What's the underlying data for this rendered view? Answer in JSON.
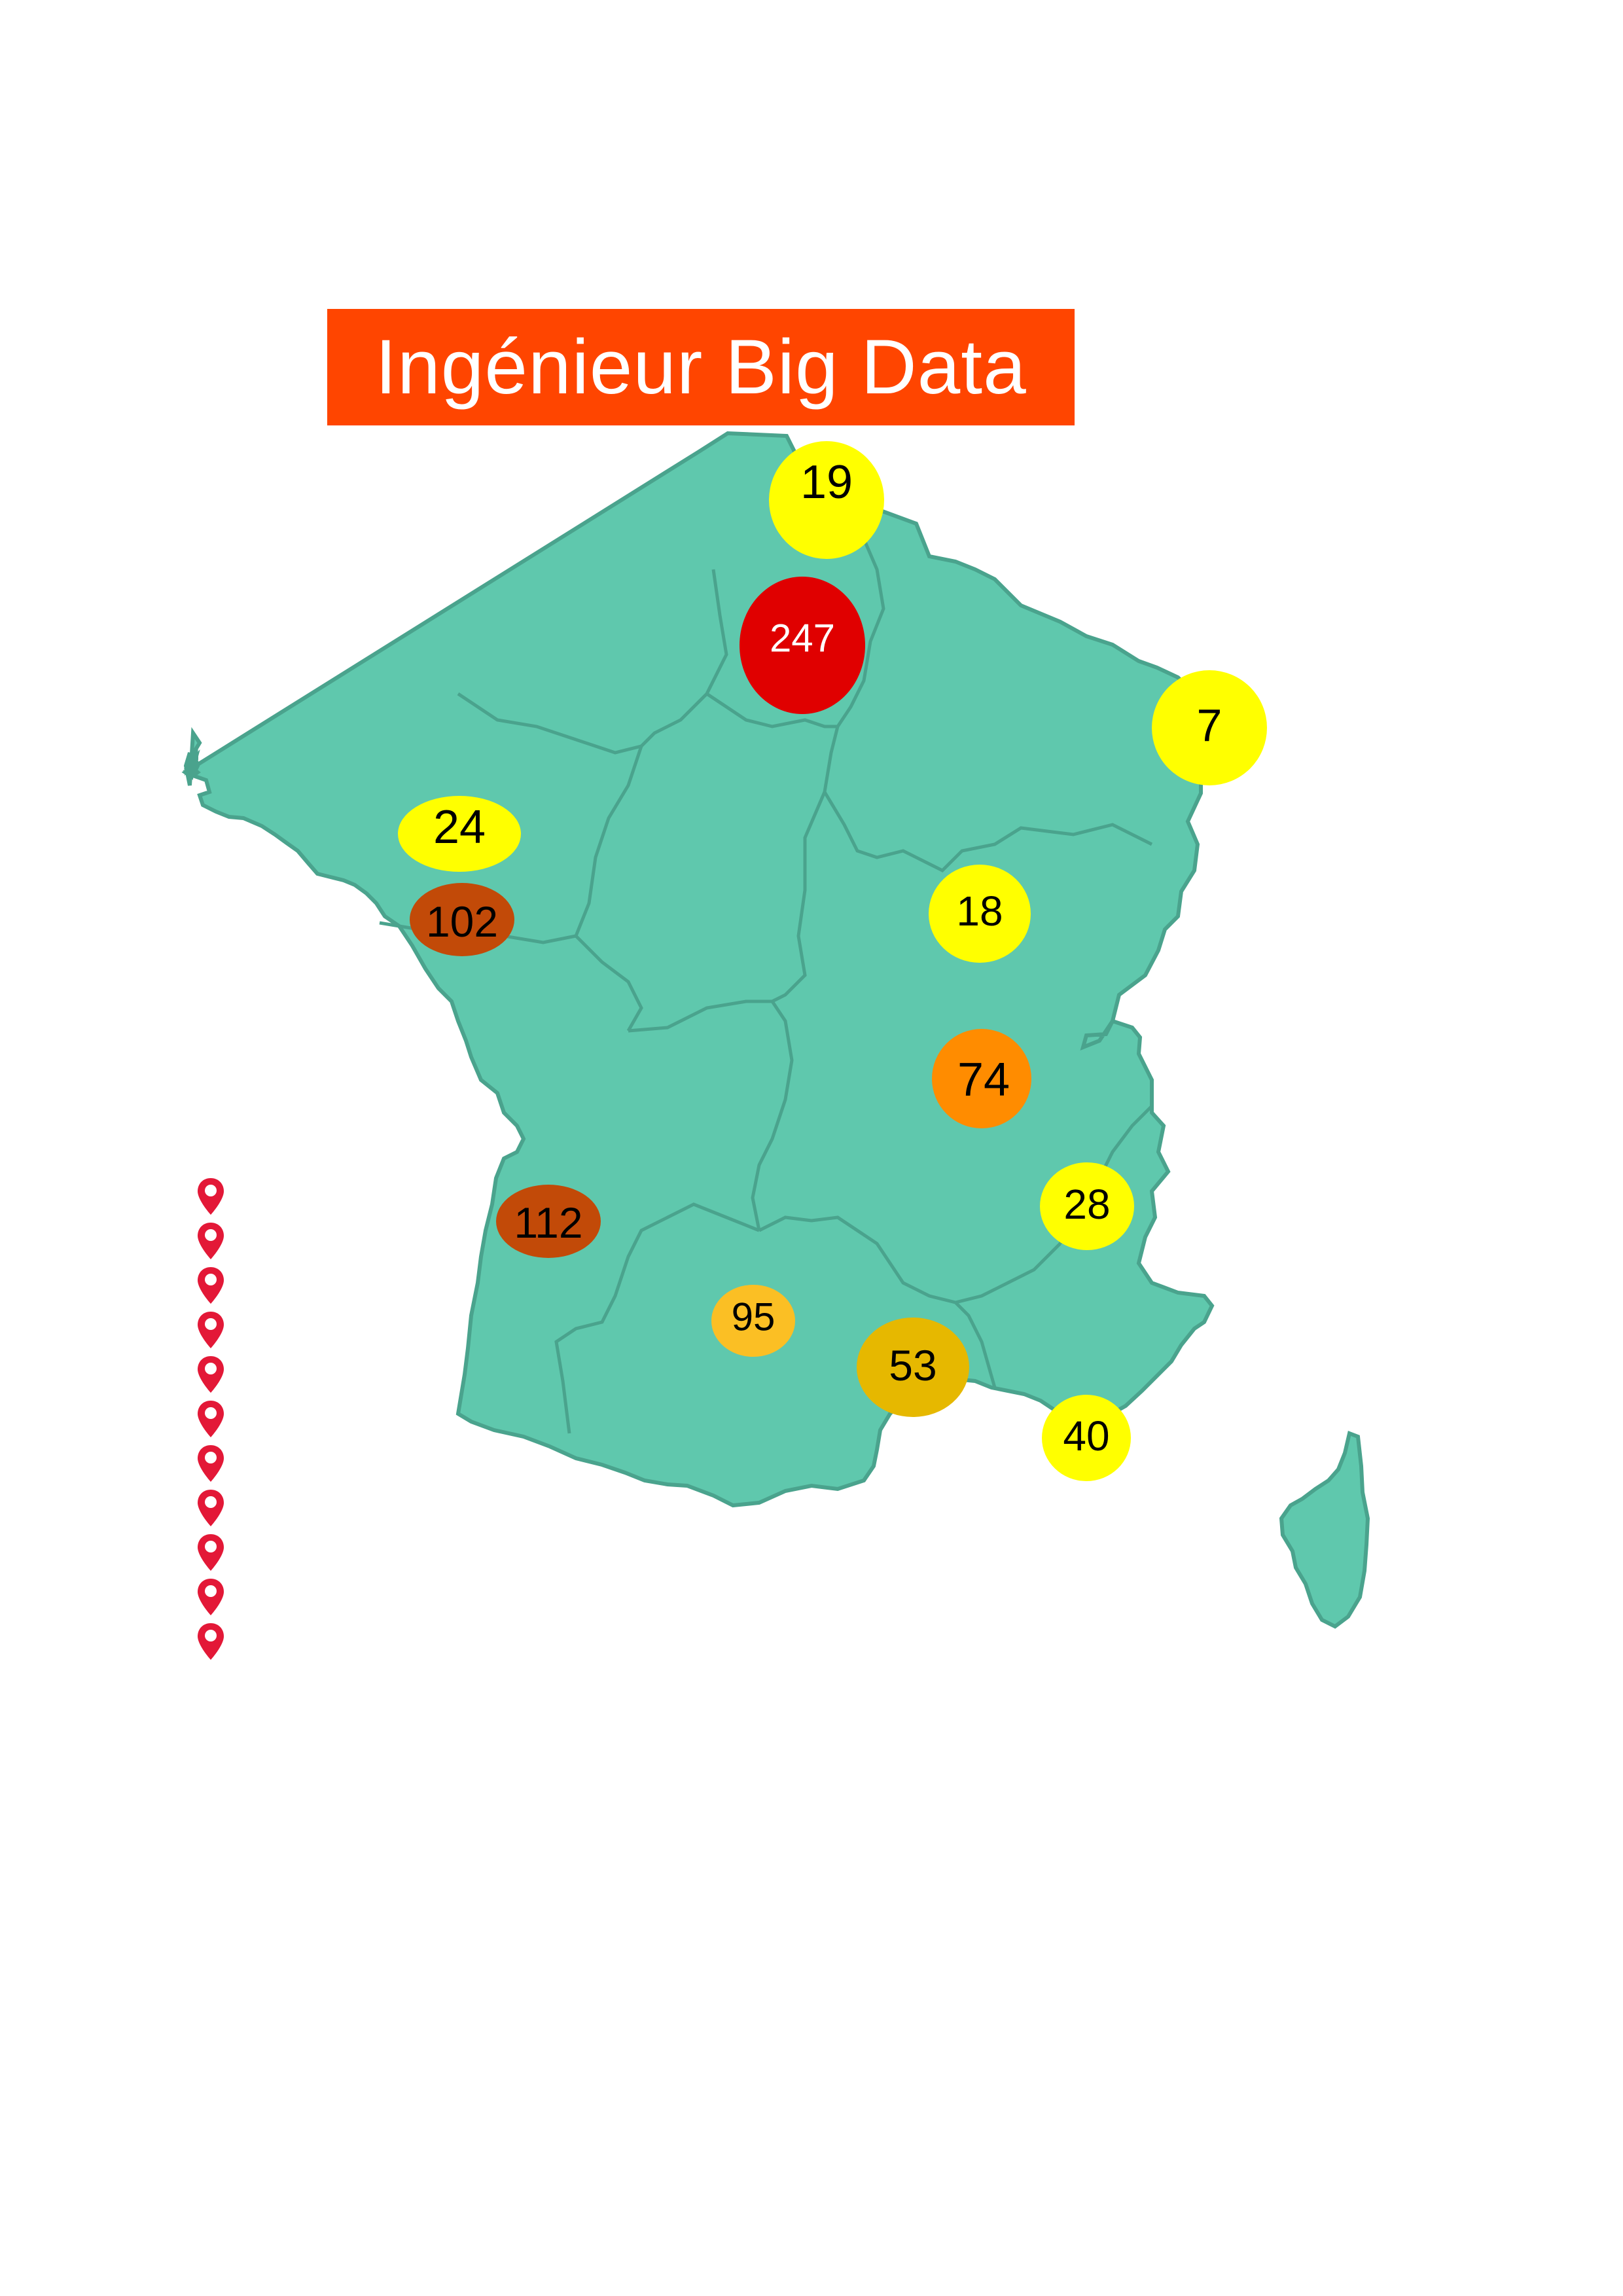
{
  "title": {
    "text": "Ingénieur Big Data",
    "background": "#ff4500",
    "color": "#ffffff"
  },
  "map": {
    "country_fill": "#5fc8ad",
    "border_color": "#4aa38d"
  },
  "bubbles": [
    {
      "label": "19",
      "color": "#ffff00",
      "text_color": "#000000"
    },
    {
      "label": "247",
      "color": "#e00000",
      "text_color": "#ffffff"
    },
    {
      "label": "7",
      "color": "#ffff00",
      "text_color": "#000000"
    },
    {
      "label": "24",
      "color": "#ffff00",
      "text_color": "#000000"
    },
    {
      "label": "102",
      "color": "#c24a08",
      "text_color": "#000000"
    },
    {
      "label": "18",
      "color": "#ffff00",
      "text_color": "#000000"
    },
    {
      "label": "74",
      "color": "#ff8c00",
      "text_color": "#000000"
    },
    {
      "label": "28",
      "color": "#ffff00",
      "text_color": "#000000"
    },
    {
      "label": "112",
      "color": "#c24a08",
      "text_color": "#000000"
    },
    {
      "label": "95",
      "color": "#fbbf24",
      "text_color": "#000000"
    },
    {
      "label": "53",
      "color": "#e6b800",
      "text_color": "#000000"
    },
    {
      "label": "40",
      "color": "#ffff00",
      "text_color": "#000000"
    }
  ],
  "legend_pins": {
    "count": 11,
    "icon": "map-pin-icon",
    "color": "#e31837"
  }
}
